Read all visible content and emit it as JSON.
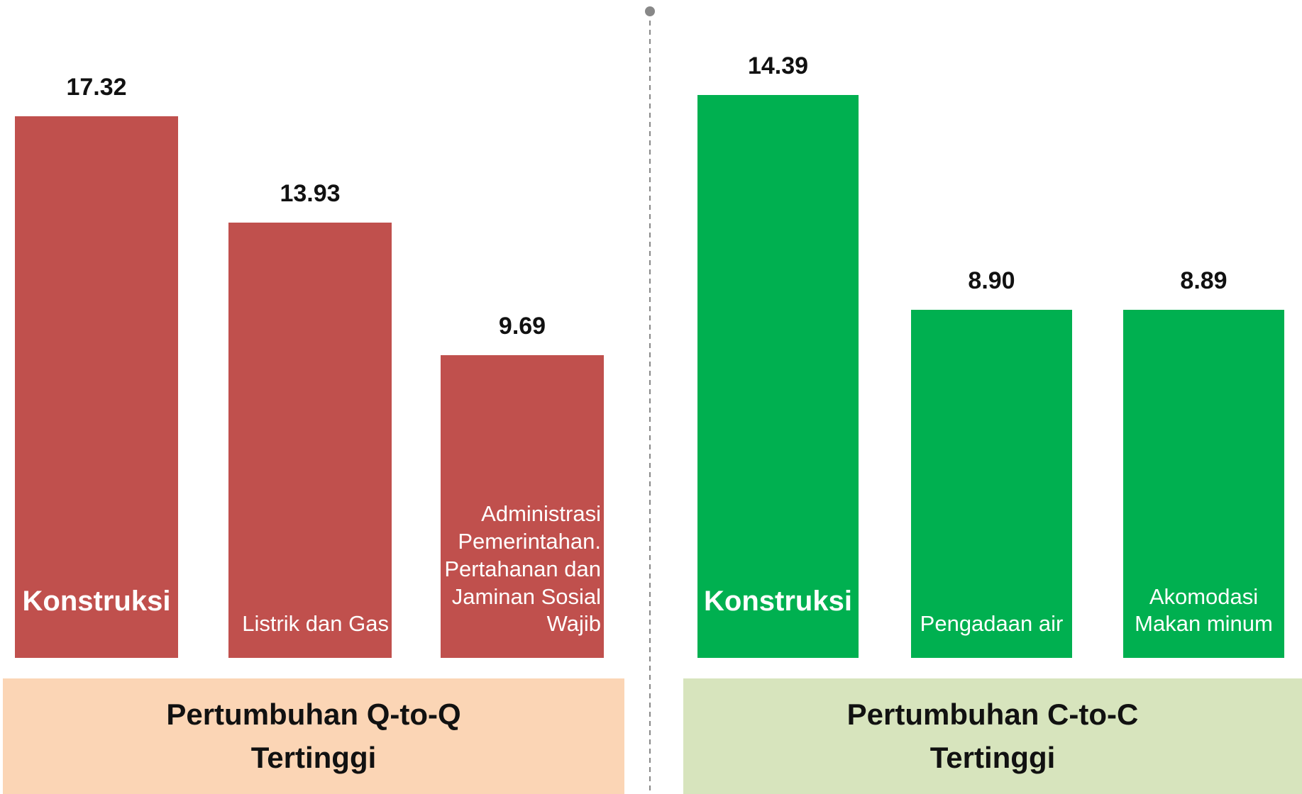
{
  "chart_data": [
    {
      "type": "bar",
      "title": "Pertumbuhan Q-to-Q Tertinggi",
      "categories": [
        "Konstruksi",
        "Listrik dan Gas",
        "Administrasi Pemerintahan. Pertahanan dan Jaminan Sosial Wajib"
      ],
      "values": [
        17.32,
        13.93,
        9.69
      ],
      "color": "#c0504d"
    },
    {
      "type": "bar",
      "title": "Pertumbuhan C-to-C Tertinggi",
      "categories": [
        "Konstruksi",
        "Pengadaan air",
        "Akomodasi Makan minum"
      ],
      "values": [
        14.39,
        8.9,
        8.89
      ],
      "value_labels": [
        "14.39",
        "8.90",
        "8.89"
      ],
      "color": "#00b050"
    }
  ]
}
